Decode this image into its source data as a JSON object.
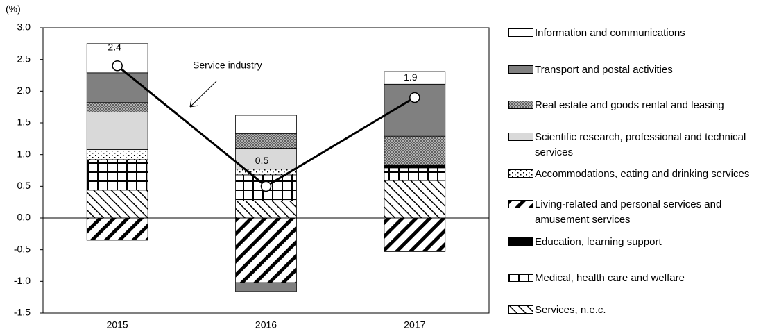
{
  "chart_data": {
    "type": "bar",
    "y_label": "(%)",
    "categories": [
      "2015",
      "2016",
      "2017"
    ],
    "ylim": [
      -1.5,
      3.0
    ],
    "yticks": [
      {
        "value": 3.0,
        "label": "3.0"
      },
      2.5,
      {
        "value": 2.0,
        "label": "2.0"
      },
      1.5,
      {
        "value": 1.0,
        "label": "1.0"
      },
      0.5,
      {
        "value": 0.0,
        "label": "0.0"
      },
      -0.5,
      {
        "value": -1.0,
        "label": "-1.0"
      },
      -1.5
    ],
    "series": [
      {
        "name": "Information and communications",
        "color": "#ffffff",
        "pattern": "solid",
        "values": [
          0.46,
          0.29,
          0.2
        ]
      },
      {
        "name": "Transport and postal activities",
        "color": "#808080",
        "pattern": "solid",
        "values": [
          0.47,
          -0.14,
          0.82
        ]
      },
      {
        "name": "Real estate and goods rental and leasing",
        "color": "#808080",
        "pattern": "crosshatch",
        "values": [
          0.15,
          0.23,
          0.45
        ]
      },
      {
        "name": "Scientific research, professional and technical services",
        "color": "#d9d9d9",
        "pattern": "solid",
        "values": [
          0.59,
          0.33,
          0
        ]
      },
      {
        "name": "Accommodations, eating and drinking services",
        "color": "#ffffff",
        "pattern": "dots",
        "values": [
          0.16,
          0.09,
          0
        ]
      },
      {
        "name": "Living-related and personal services and amusement services",
        "color": "#000000",
        "pattern": "backhatch",
        "values": [
          -0.35,
          -1.02,
          -0.53
        ]
      },
      {
        "name": "Education, learning support",
        "color": "#000000",
        "pattern": "solid",
        "values": [
          0,
          0,
          0.05
        ]
      },
      {
        "name": "Medical, health care and welfare",
        "color": "#ffffff",
        "pattern": "grid",
        "values": [
          0.48,
          0.41,
          0.2
        ]
      },
      {
        "name": "Services, n.e.c.",
        "color": "#ffffff",
        "pattern": "hatch",
        "values": [
          0.44,
          0.27,
          0.59
        ]
      }
    ],
    "line": {
      "name": "Service industry",
      "color": "#000000",
      "values": [
        2.4,
        0.5,
        1.9
      ]
    }
  }
}
